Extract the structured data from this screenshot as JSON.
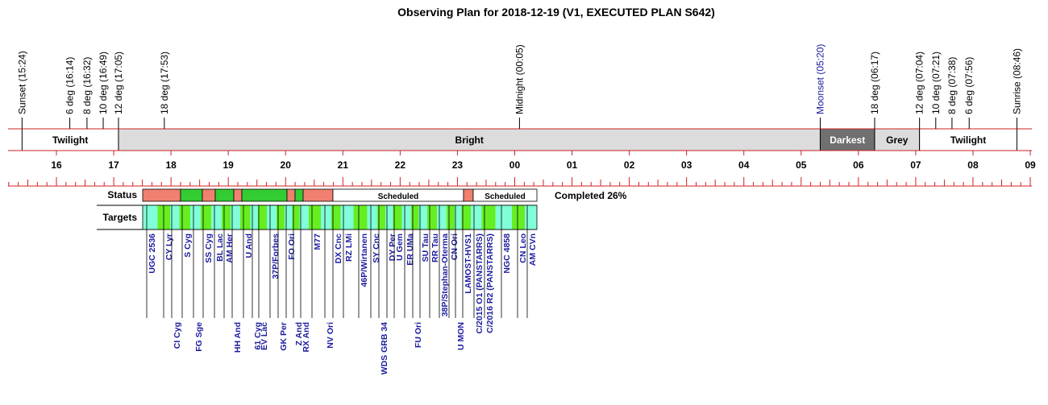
{
  "title": "Observing Plan for 2018-12-19 (V1, EXECUTED PLAN S642)",
  "events": [
    {
      "label": "Sunset (15:24)",
      "color": "#000000"
    },
    {
      "label": "6 deg (16:14)",
      "color": "#000000"
    },
    {
      "label": "8 deg (16:32)",
      "color": "#000000"
    },
    {
      "label": "10 deg (16:49)",
      "color": "#000000"
    },
    {
      "label": "12 deg (17:05)",
      "color": "#000000"
    },
    {
      "label": "18 deg (17:53)",
      "color": "#000000"
    },
    {
      "label": "Midnight (00:05)",
      "color": "#000000"
    },
    {
      "label": "Moonset (05:20)",
      "color": "#1a1aa0"
    },
    {
      "label": "18 deg (06:17)",
      "color": "#000000"
    },
    {
      "label": "12 deg (07:04)",
      "color": "#000000"
    },
    {
      "label": "10 deg (07:21)",
      "color": "#000000"
    },
    {
      "label": "8 deg (07:38)",
      "color": "#000000"
    },
    {
      "label": "6 deg (07:56)",
      "color": "#000000"
    },
    {
      "label": "Sunrise (08:46)",
      "color": "#000000"
    }
  ],
  "bands": [
    {
      "label": "Twilight",
      "color": "#ffffff",
      "text_color": "#000000"
    },
    {
      "label": "Bright",
      "color": "#dcdcdc",
      "text_color": "#000000"
    },
    {
      "label": "Darkest",
      "color": "#707070",
      "text_color": "#ffffff"
    },
    {
      "label": "Grey",
      "color": "#dcdcdc",
      "text_color": "#000000"
    },
    {
      "label": "Twilight",
      "color": "#ffffff",
      "text_color": "#000000"
    }
  ],
  "hours": [
    "16",
    "17",
    "18",
    "19",
    "20",
    "21",
    "22",
    "23",
    "00",
    "01",
    "02",
    "03",
    "04",
    "05",
    "06",
    "07",
    "08",
    "09"
  ],
  "status_label": "Status",
  "targets_label": "Targets",
  "completed": "Completed 26%",
  "status": [
    {
      "color": "#f08070"
    },
    {
      "color": "#33cc33"
    },
    {
      "color": "#f08070"
    },
    {
      "color": "#33cc33"
    },
    {
      "color": "#f08070"
    },
    {
      "color": "#33cc33"
    },
    {
      "color": "#f08070"
    },
    {
      "color": "#33cc33"
    },
    {
      "color": "#f08070"
    },
    {
      "color": "#ffffff",
      "label": "Scheduled"
    },
    {
      "color": "#f08070"
    },
    {
      "color": "#ffffff",
      "label": "Scheduled"
    }
  ],
  "target_colors": [
    "#80ffd8",
    "#66ee22"
  ],
  "targets": [
    "UGC 2536",
    "CY Lyr",
    "CI Cyg",
    "S Cyg",
    "FG Sge",
    "SS Cyg",
    "BL Lac",
    "AM Her",
    "HH And",
    "U And",
    "61 Cyg",
    "EV Lac",
    "37P/Forbes",
    "GK Per",
    "FO Ori",
    "Z And",
    "RX And",
    "M77",
    "NV Ori",
    "DX Cnc",
    "RZ LMi",
    "46P/Wirtanen",
    "SY Cnc",
    "WDS GRB 34",
    "DY Per",
    "U Gem",
    "ER UMa",
    "FU Ori",
    "SU Tau",
    "RR Tau",
    "38P/Stephan-Oterma",
    "CN Ori",
    "U MON",
    "LAMOST-HVS1",
    "C/2015 O1 (PANSTARRS)",
    "C/2016 R2 (PANSTARRS)",
    "NGC 4858",
    "CN Leo",
    "AM CVn"
  ]
}
